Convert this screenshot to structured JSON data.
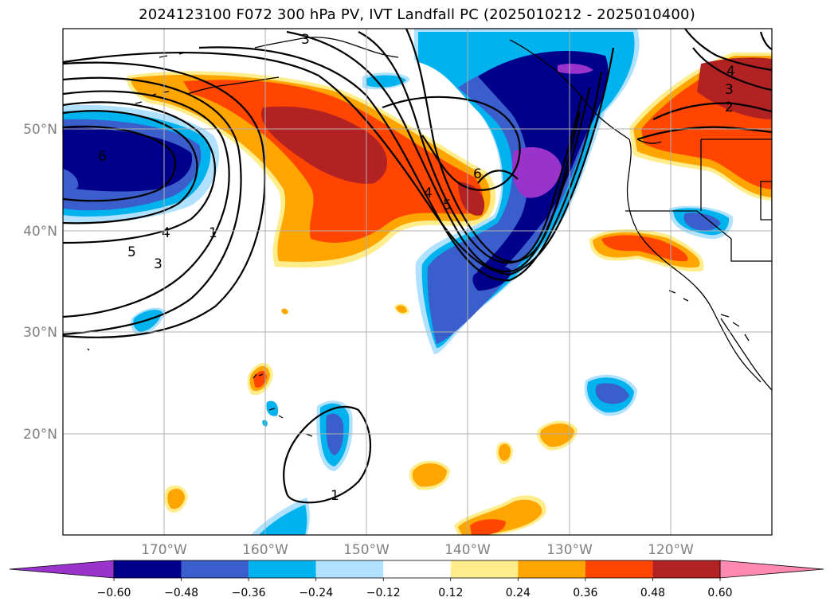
{
  "title": "2024123100 F072 300 hPa PV, IVT Landfall PC (2025010212 - 2025010400)",
  "lat_labels": [
    "50°N",
    "40°N",
    "30°N",
    "20°N"
  ],
  "lon_labels": [
    "170°W",
    "160°W",
    "150°W",
    "140°W",
    "130°W",
    "120°W"
  ],
  "colorbar": {
    "ticks": [
      "−0.60",
      "−0.48",
      "−0.36",
      "−0.24",
      "−0.12",
      "0.12",
      "0.24",
      "0.36",
      "0.48",
      "0.60"
    ],
    "colors": [
      "#9933cc",
      "#00008b",
      "#3a5fcd",
      "#00b2ee",
      "#b0e2ff",
      "#ffffff",
      "#ffec8b",
      "#ffa500",
      "#ff4500",
      "#b22222",
      "#ff89b0"
    ]
  },
  "contour_labels": [
    "6",
    "5",
    "4",
    "3",
    "1",
    "1",
    "6",
    "4",
    "5",
    "4",
    "3",
    "2",
    "3"
  ]
}
